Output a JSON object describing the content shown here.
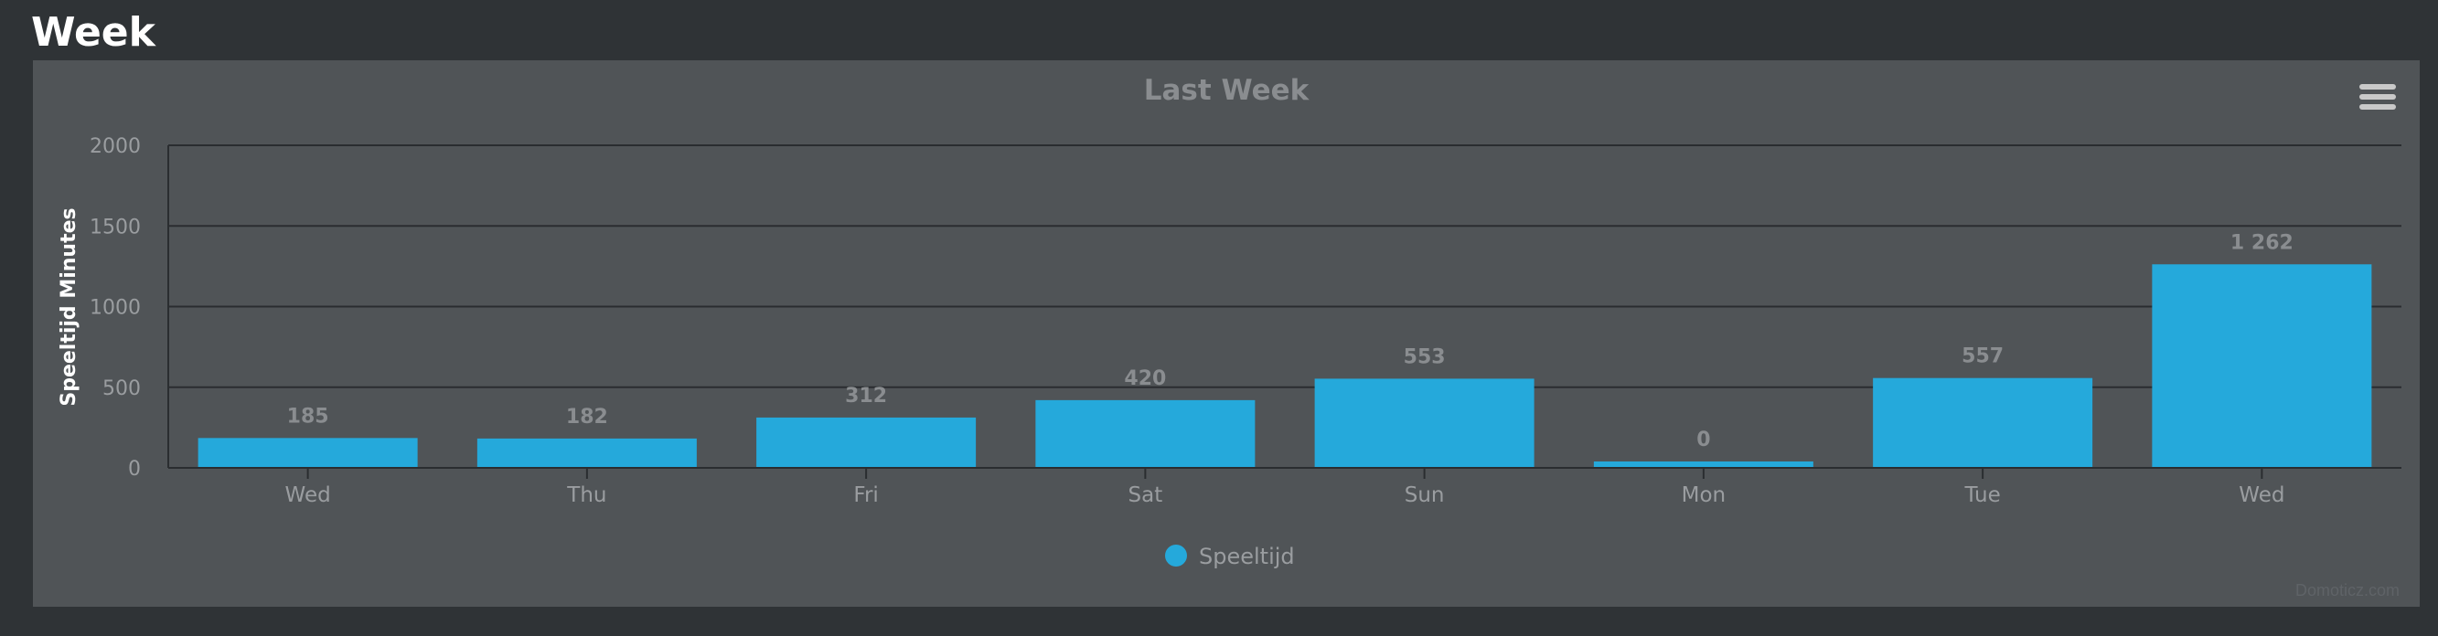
{
  "page": {
    "title": "Week"
  },
  "credits": "Domoticz.com",
  "menu": {
    "icon": "hamburger-menu-icon"
  },
  "colors": {
    "bar": "#25a9db",
    "background": "#2f3336",
    "panel": "#505457",
    "grid": "#2a2d30",
    "title": "#8a8d90",
    "label": "#9a9da0",
    "ylabel": "#ffffff"
  },
  "chart_data": {
    "type": "bar",
    "title": "Last Week",
    "xlabel": "",
    "ylabel": "Speeltijd Minutes",
    "categories": [
      "Wed",
      "Thu",
      "Fri",
      "Sat",
      "Sun",
      "Mon",
      "Tue",
      "Wed"
    ],
    "series": [
      {
        "name": "Speeltijd",
        "values": [
          185,
          182,
          312,
          420,
          553,
          0,
          557,
          1262
        ]
      }
    ],
    "data_labels": [
      "185",
      "182",
      "312",
      "420",
      "553",
      "0",
      "557",
      "1 262"
    ],
    "ylim": [
      0,
      2000
    ],
    "yticks": [
      0,
      500,
      1000,
      1500,
      2000
    ],
    "grid": true,
    "legend": "bottom-center"
  }
}
